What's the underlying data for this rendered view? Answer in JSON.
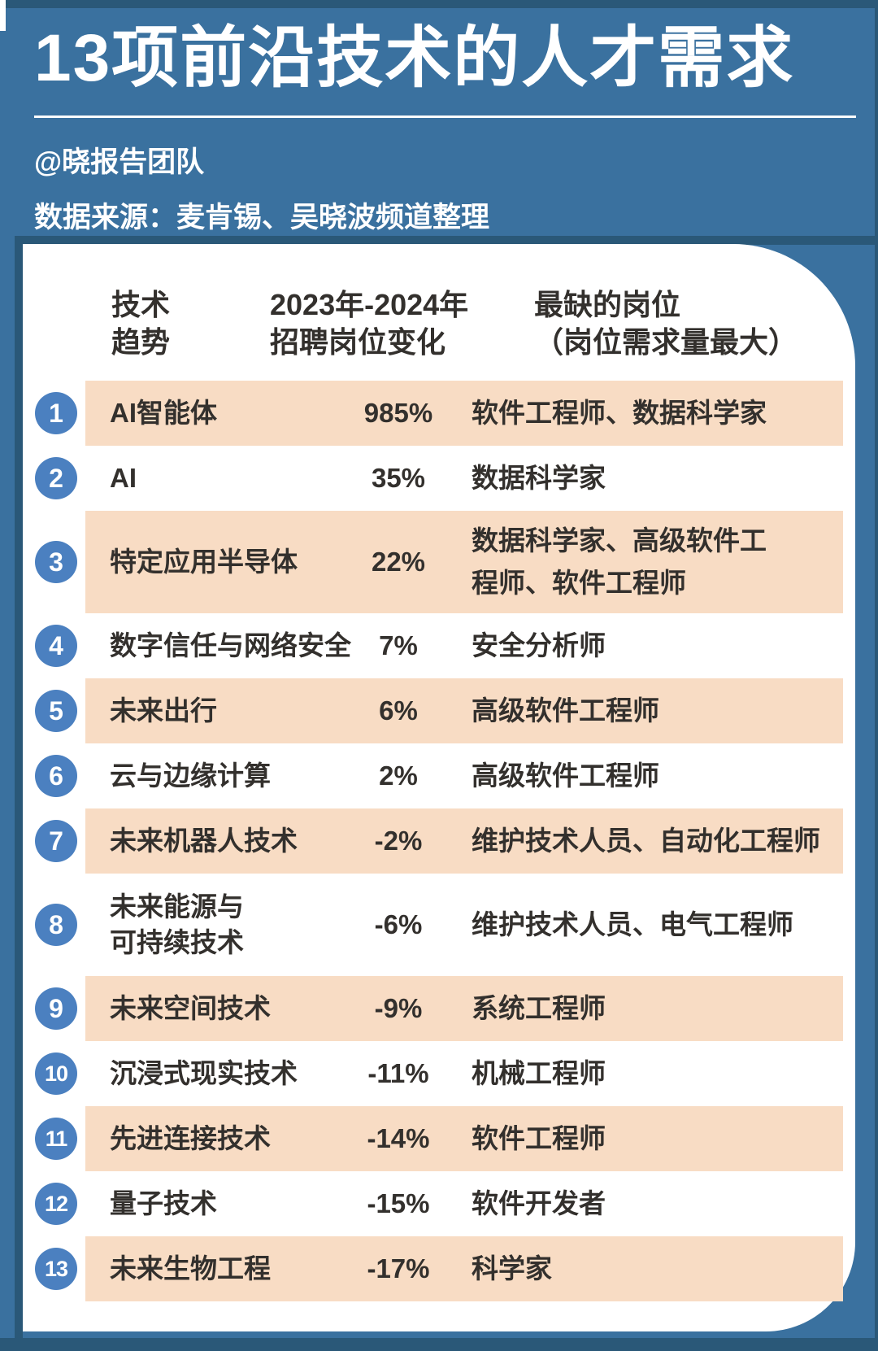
{
  "page": {
    "title": "13项前沿技术的人才需求",
    "byline": "@晓报告团队",
    "source": "数据来源：麦肯锡、吴晓波频道整理"
  },
  "table": {
    "headers": {
      "tech": "技术\n趋势",
      "change": "2023年-2024年\n招聘岗位变化",
      "roles": "最缺的岗位\n（岗位需求量最大）"
    },
    "rows": [
      {
        "num": "1",
        "tech": "AI智能体",
        "change": "985%",
        "roles": "软件工程师、数据科学家"
      },
      {
        "num": "2",
        "tech": "AI",
        "change": "35%",
        "roles": "数据科学家"
      },
      {
        "num": "3",
        "tech": "特定应用半导体",
        "change": "22%",
        "roles": "数据科学家、高级软件工\n程师、软件工程师"
      },
      {
        "num": "4",
        "tech": "数字信任与网络安全",
        "change": "7%",
        "roles": "安全分析师"
      },
      {
        "num": "5",
        "tech": "未来出行",
        "change": "6%",
        "roles": "高级软件工程师"
      },
      {
        "num": "6",
        "tech": "云与边缘计算",
        "change": "2%",
        "roles": "高级软件工程师"
      },
      {
        "num": "7",
        "tech": "未来机器人技术",
        "change": "-2%",
        "roles": "维护技术人员、自动化工程师"
      },
      {
        "num": "8",
        "tech": "未来能源与\n可持续技术",
        "change": "-6%",
        "roles": "维护技术人员、电气工程师"
      },
      {
        "num": "9",
        "tech": "未来空间技术",
        "change": "-9%",
        "roles": "系统工程师"
      },
      {
        "num": "10",
        "tech": "沉浸式现实技术",
        "change": "-11%",
        "roles": "机械工程师"
      },
      {
        "num": "11",
        "tech": "先进连接技术",
        "change": "-14%",
        "roles": "软件工程师"
      },
      {
        "num": "12",
        "tech": "量子技术",
        "change": "-15%",
        "roles": "软件开发者"
      },
      {
        "num": "13",
        "tech": "未来生物工程",
        "change": "-17%",
        "roles": "科学家"
      }
    ]
  },
  "chart_data": {
    "type": "table",
    "title": "13项前沿技术的人才需求",
    "columns": [
      "技术趋势",
      "2023年-2024年招聘岗位变化",
      "最缺的岗位（岗位需求量最大）"
    ],
    "rows": [
      [
        "AI智能体",
        "985%",
        "软件工程师、数据科学家"
      ],
      [
        "AI",
        "35%",
        "数据科学家"
      ],
      [
        "特定应用半导体",
        "22%",
        "数据科学家、高级软件工程师、软件工程师"
      ],
      [
        "数字信任与网络安全",
        "7%",
        "安全分析师"
      ],
      [
        "未来出行",
        "6%",
        "高级软件工程师"
      ],
      [
        "云与边缘计算",
        "2%",
        "高级软件工程师"
      ],
      [
        "未来机器人技术",
        "-2%",
        "维护技术人员、自动化工程师"
      ],
      [
        "未来能源与可持续技术",
        "-6%",
        "维护技术人员、电气工程师"
      ],
      [
        "未来空间技术",
        "-9%",
        "系统工程师"
      ],
      [
        "沉浸式现实技术",
        "-11%",
        "机械工程师"
      ],
      [
        "先进连接技术",
        "-14%",
        "软件工程师"
      ],
      [
        "量子技术",
        "-15%",
        "软件开发者"
      ],
      [
        "未来生物工程",
        "-17%",
        "科学家"
      ]
    ],
    "change_values_pct": [
      985,
      35,
      22,
      7,
      6,
      2,
      -2,
      -6,
      -9,
      -11,
      -14,
      -15,
      -17
    ]
  },
  "colors": {
    "background_blue": "#3A719F",
    "frame_dark_blue": "#2A5878",
    "badge_blue": "#4B80C0",
    "row_highlight_peach": "#F8DCC4",
    "card_white": "#FFFFFF",
    "text_dark": "#33302D"
  }
}
